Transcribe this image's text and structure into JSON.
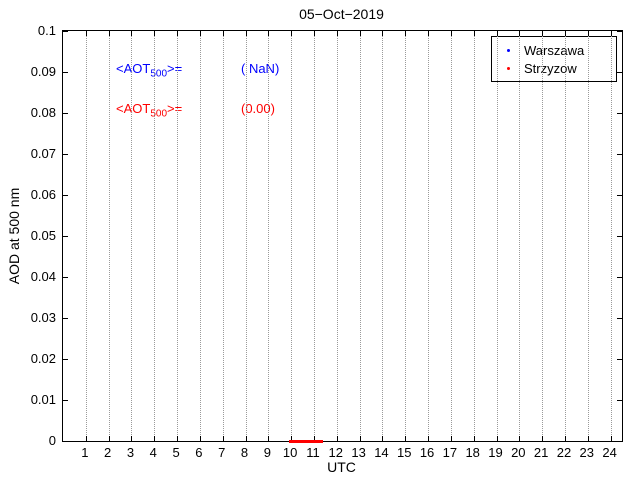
{
  "figure": {
    "title": "05−Oct−2019",
    "xlabel": "UTC",
    "ylabel": "AOD at 500 nm"
  },
  "annotations": {
    "warszawa_mean": {
      "prefix": "<AOT",
      "sub": "500",
      "suffix": ">=",
      "value": "( NaN)",
      "color": "#0000ff"
    },
    "strzyzow_mean": {
      "prefix": "<AOT",
      "sub": "500",
      "suffix": ">=",
      "value": "(0.00)",
      "color": "#ff0000"
    }
  },
  "legend": {
    "items": [
      {
        "label": "Warszawa",
        "color": "#0000ff"
      },
      {
        "label": "Strzyzow",
        "color": "#ff0000"
      }
    ]
  },
  "colors": {
    "warszawa": "#0000ff",
    "strzyzow": "#ff0000",
    "grid": "#9a9a9a",
    "axis": "#000000"
  },
  "chart_data": {
    "type": "scatter",
    "title": "05−Oct−2019",
    "xlabel": "UTC",
    "ylabel": "AOD at 500 nm",
    "xlim": [
      0,
      24.5
    ],
    "ylim": [
      0,
      0.1
    ],
    "xticks": [
      1,
      2,
      3,
      4,
      5,
      6,
      7,
      8,
      9,
      10,
      11,
      12,
      13,
      14,
      15,
      16,
      17,
      18,
      19,
      20,
      21,
      22,
      23,
      24
    ],
    "xtick_labels": [
      "1",
      "2",
      "3",
      "4",
      "5",
      "6",
      "7",
      "8",
      "9",
      "10",
      "11",
      "12",
      "13",
      "14",
      "15",
      "16",
      "17",
      "18",
      "19",
      "20",
      "21",
      "22",
      "23",
      "24"
    ],
    "ytick_values": [
      0,
      0.01,
      0.02,
      0.03,
      0.04,
      0.05,
      0.06,
      0.07,
      0.08,
      0.09,
      0.1
    ],
    "ytick_labels": [
      "0",
      "0.01",
      "0.02",
      "0.03",
      "0.04",
      "0.05",
      "0.06",
      "0.07",
      "0.08",
      "0.09",
      "0.1"
    ],
    "grid": "vertical-only",
    "legend_position": "top-right",
    "series": [
      {
        "name": "Warszawa",
        "color": "#0000ff",
        "marker": "dot",
        "mean_aot500": "NaN",
        "x": [],
        "y": []
      },
      {
        "name": "Strzyzow",
        "color": "#ff0000",
        "marker": "dot",
        "mean_aot500": 0.0,
        "x": [
          10.0,
          10.1,
          10.2,
          10.3,
          10.4,
          10.5,
          10.6,
          10.7,
          10.8,
          10.9,
          11.0,
          11.1,
          11.2,
          11.3
        ],
        "y": [
          0,
          0,
          0,
          0,
          0,
          0,
          0,
          0,
          0,
          0,
          0,
          0,
          0,
          0
        ]
      }
    ]
  }
}
